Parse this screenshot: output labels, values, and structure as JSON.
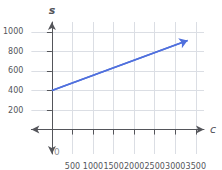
{
  "chart_data": {
    "type": "line",
    "x": [
      0,
      3300
    ],
    "values": [
      400,
      910
    ],
    "xlabel": "c",
    "ylabel": "s",
    "xlim": [
      -500,
      3700
    ],
    "ylim": [
      -250,
      1100
    ],
    "xticks": [
      500,
      1000,
      1500,
      2000,
      2500,
      3000,
      3500
    ],
    "yticks": [
      200,
      400,
      600,
      800,
      1000
    ],
    "grid": true,
    "marker": "arrow",
    "annotations": [
      {
        "text": "0",
        "x": 50,
        "y": -180
      }
    ]
  }
}
